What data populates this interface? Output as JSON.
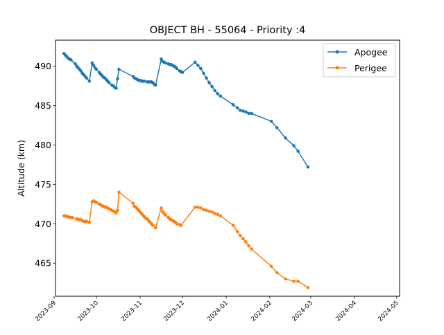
{
  "chart_data": {
    "type": "line",
    "title": "OBJECT BH - 55064 - Priority :4",
    "xlabel": "",
    "ylabel": "Altitude (km)",
    "xlim": [
      "2023-09-02",
      "2024-05-03"
    ],
    "ylim": [
      460.8,
      493.3
    ],
    "grid": false,
    "legend_position": "top-right",
    "x_tick_labels": [
      "2023-09",
      "2023-10",
      "2023-11",
      "2023-12",
      "2024-01",
      "2024-02",
      "2024-03",
      "2024-04",
      "2024-05"
    ],
    "x_tick_dates": [
      "2023-09-01",
      "2023-10-01",
      "2023-11-01",
      "2023-12-01",
      "2024-01-01",
      "2024-02-01",
      "2024-03-01",
      "2024-04-01",
      "2024-05-01"
    ],
    "y_tick_labels": [
      "465",
      "470",
      "475",
      "480",
      "485",
      "490"
    ],
    "y_tick_values": [
      465,
      470,
      475,
      480,
      485,
      490
    ],
    "series": [
      {
        "name": "Apogee",
        "color": "#1f77b4",
        "points": [
          [
            "2023-09-08",
            491.6
          ],
          [
            "2023-09-09",
            491.4
          ],
          [
            "2023-09-10",
            491.2
          ],
          [
            "2023-09-11",
            491.0
          ],
          [
            "2023-09-12",
            490.9
          ],
          [
            "2023-09-13",
            490.8
          ],
          [
            "2023-09-16",
            490.3
          ],
          [
            "2023-09-17",
            490.0
          ],
          [
            "2023-09-18",
            489.8
          ],
          [
            "2023-09-19",
            489.6
          ],
          [
            "2023-09-20",
            489.4
          ],
          [
            "2023-09-21",
            489.1
          ],
          [
            "2023-09-22",
            488.9
          ],
          [
            "2023-09-23",
            488.7
          ],
          [
            "2023-09-24",
            488.5
          ],
          [
            "2023-09-26",
            488.1
          ],
          [
            "2023-09-28",
            490.4
          ],
          [
            "2023-09-29",
            490.1
          ],
          [
            "2023-09-30",
            489.8
          ],
          [
            "2023-10-01",
            489.6
          ],
          [
            "2023-10-03",
            489.2
          ],
          [
            "2023-10-04",
            489.0
          ],
          [
            "2023-10-05",
            488.8
          ],
          [
            "2023-10-06",
            488.6
          ],
          [
            "2023-10-07",
            488.5
          ],
          [
            "2023-10-08",
            488.3
          ],
          [
            "2023-10-09",
            488.1
          ],
          [
            "2023-10-10",
            487.9
          ],
          [
            "2023-10-12",
            487.6
          ],
          [
            "2023-10-13",
            487.5
          ],
          [
            "2023-10-14",
            487.3
          ],
          [
            "2023-10-15",
            487.2
          ],
          [
            "2023-10-16",
            488.4
          ],
          [
            "2023-10-17",
            489.6
          ],
          [
            "2023-10-27",
            488.7
          ],
          [
            "2023-10-28",
            488.5
          ],
          [
            "2023-10-29",
            488.4
          ],
          [
            "2023-10-30",
            488.3
          ],
          [
            "2023-10-31",
            488.2
          ],
          [
            "2023-11-01",
            488.2
          ],
          [
            "2023-11-02",
            488.1
          ],
          [
            "2023-11-03",
            488.1
          ],
          [
            "2023-11-04",
            488.1
          ],
          [
            "2023-11-06",
            488.0
          ],
          [
            "2023-11-07",
            488.0
          ],
          [
            "2023-11-08",
            488.0
          ],
          [
            "2023-11-09",
            488.0
          ],
          [
            "2023-11-10",
            487.9
          ],
          [
            "2023-11-11",
            487.7
          ],
          [
            "2023-11-12",
            487.6
          ],
          [
            "2023-11-16",
            490.9
          ],
          [
            "2023-11-17",
            490.6
          ],
          [
            "2023-11-18",
            490.5
          ],
          [
            "2023-11-19",
            490.4
          ],
          [
            "2023-11-21",
            490.3
          ],
          [
            "2023-11-22",
            490.2
          ],
          [
            "2023-11-23",
            490.2
          ],
          [
            "2023-11-24",
            490.1
          ],
          [
            "2023-11-25",
            490.0
          ],
          [
            "2023-11-26",
            489.9
          ],
          [
            "2023-11-27",
            489.7
          ],
          [
            "2023-11-29",
            489.4
          ],
          [
            "2023-11-30",
            489.3
          ],
          [
            "2023-12-01",
            489.2
          ],
          [
            "2023-12-10",
            490.5
          ],
          [
            "2023-12-12",
            490.1
          ],
          [
            "2023-12-14",
            489.7
          ],
          [
            "2023-12-16",
            489.1
          ],
          [
            "2023-12-18",
            488.5
          ],
          [
            "2023-12-20",
            487.9
          ],
          [
            "2023-12-22",
            487.4
          ],
          [
            "2023-12-24",
            486.9
          ],
          [
            "2023-12-26",
            486.5
          ],
          [
            "2023-12-28",
            486.2
          ],
          [
            "2024-01-06",
            485.1
          ],
          [
            "2024-01-09",
            484.7
          ],
          [
            "2024-01-11",
            484.4
          ],
          [
            "2024-01-13",
            484.3
          ],
          [
            "2024-01-15",
            484.2
          ],
          [
            "2024-01-17",
            484.0
          ],
          [
            "2024-01-19",
            484.0
          ],
          [
            "2024-02-02",
            483.0
          ],
          [
            "2024-02-06",
            482.2
          ],
          [
            "2024-02-12",
            480.9
          ],
          [
            "2024-02-18",
            479.9
          ],
          [
            "2024-02-21",
            479.2
          ],
          [
            "2024-02-28",
            477.2
          ]
        ]
      },
      {
        "name": "Perigee",
        "color": "#ff7f0e",
        "points": [
          [
            "2023-09-08",
            471.0
          ],
          [
            "2023-09-09",
            471.0
          ],
          [
            "2023-09-10",
            470.9
          ],
          [
            "2023-09-11",
            470.9
          ],
          [
            "2023-09-12",
            470.8
          ],
          [
            "2023-09-13",
            470.8
          ],
          [
            "2023-09-14",
            470.8
          ],
          [
            "2023-09-17",
            470.6
          ],
          [
            "2023-09-18",
            470.6
          ],
          [
            "2023-09-19",
            470.5
          ],
          [
            "2023-09-20",
            470.5
          ],
          [
            "2023-09-21",
            470.4
          ],
          [
            "2023-09-22",
            470.3
          ],
          [
            "2023-09-23",
            470.3
          ],
          [
            "2023-09-24",
            470.3
          ],
          [
            "2023-09-26",
            470.2
          ],
          [
            "2023-09-28",
            472.8
          ],
          [
            "2023-09-29",
            472.9
          ],
          [
            "2023-09-30",
            472.8
          ],
          [
            "2023-10-01",
            472.7
          ],
          [
            "2023-10-03",
            472.5
          ],
          [
            "2023-10-04",
            472.4
          ],
          [
            "2023-10-05",
            472.3
          ],
          [
            "2023-10-06",
            472.2
          ],
          [
            "2023-10-07",
            472.1
          ],
          [
            "2023-10-08",
            472.1
          ],
          [
            "2023-10-09",
            472.0
          ],
          [
            "2023-10-10",
            471.9
          ],
          [
            "2023-10-11",
            471.8
          ],
          [
            "2023-10-12",
            471.7
          ],
          [
            "2023-10-13",
            471.6
          ],
          [
            "2023-10-14",
            471.5
          ],
          [
            "2023-10-15",
            471.4
          ],
          [
            "2023-10-16",
            471.7
          ],
          [
            "2023-10-17",
            474.0
          ],
          [
            "2023-10-27",
            472.6
          ],
          [
            "2023-10-28",
            472.2
          ],
          [
            "2023-10-29",
            472.1
          ],
          [
            "2023-10-30",
            471.9
          ],
          [
            "2023-10-31",
            471.7
          ],
          [
            "2023-11-01",
            471.5
          ],
          [
            "2023-11-02",
            471.3
          ],
          [
            "2023-11-03",
            471.1
          ],
          [
            "2023-11-04",
            470.9
          ],
          [
            "2023-11-05",
            470.7
          ],
          [
            "2023-11-06",
            470.6
          ],
          [
            "2023-11-07",
            470.4
          ],
          [
            "2023-11-08",
            470.2
          ],
          [
            "2023-11-09",
            470.0
          ],
          [
            "2023-11-10",
            469.8
          ],
          [
            "2023-11-12",
            469.5
          ],
          [
            "2023-11-16",
            472.0
          ],
          [
            "2023-11-17",
            471.5
          ],
          [
            "2023-11-18",
            471.3
          ],
          [
            "2023-11-19",
            471.1
          ],
          [
            "2023-11-21",
            470.8
          ],
          [
            "2023-11-22",
            470.6
          ],
          [
            "2023-11-23",
            470.5
          ],
          [
            "2023-11-24",
            470.4
          ],
          [
            "2023-11-25",
            470.3
          ],
          [
            "2023-11-26",
            470.2
          ],
          [
            "2023-11-27",
            470.0
          ],
          [
            "2023-11-29",
            469.9
          ],
          [
            "2023-11-30",
            469.8
          ],
          [
            "2023-12-10",
            472.1
          ],
          [
            "2023-12-12",
            472.1
          ],
          [
            "2023-12-14",
            472.0
          ],
          [
            "2023-12-16",
            471.8
          ],
          [
            "2023-12-18",
            471.7
          ],
          [
            "2023-12-20",
            471.6
          ],
          [
            "2023-12-22",
            471.5
          ],
          [
            "2023-12-24",
            471.3
          ],
          [
            "2023-12-26",
            471.2
          ],
          [
            "2023-12-28",
            471.0
          ],
          [
            "2024-01-06",
            469.8
          ],
          [
            "2024-01-09",
            469.0
          ],
          [
            "2024-01-11",
            468.5
          ],
          [
            "2024-01-13",
            468.1
          ],
          [
            "2024-01-15",
            467.7
          ],
          [
            "2024-01-17",
            467.2
          ],
          [
            "2024-01-19",
            466.8
          ],
          [
            "2024-02-02",
            464.6
          ],
          [
            "2024-02-06",
            463.8
          ],
          [
            "2024-02-12",
            463.0
          ],
          [
            "2024-02-18",
            462.7
          ],
          [
            "2024-02-21",
            462.7
          ],
          [
            "2024-02-28",
            461.9
          ]
        ]
      }
    ]
  }
}
